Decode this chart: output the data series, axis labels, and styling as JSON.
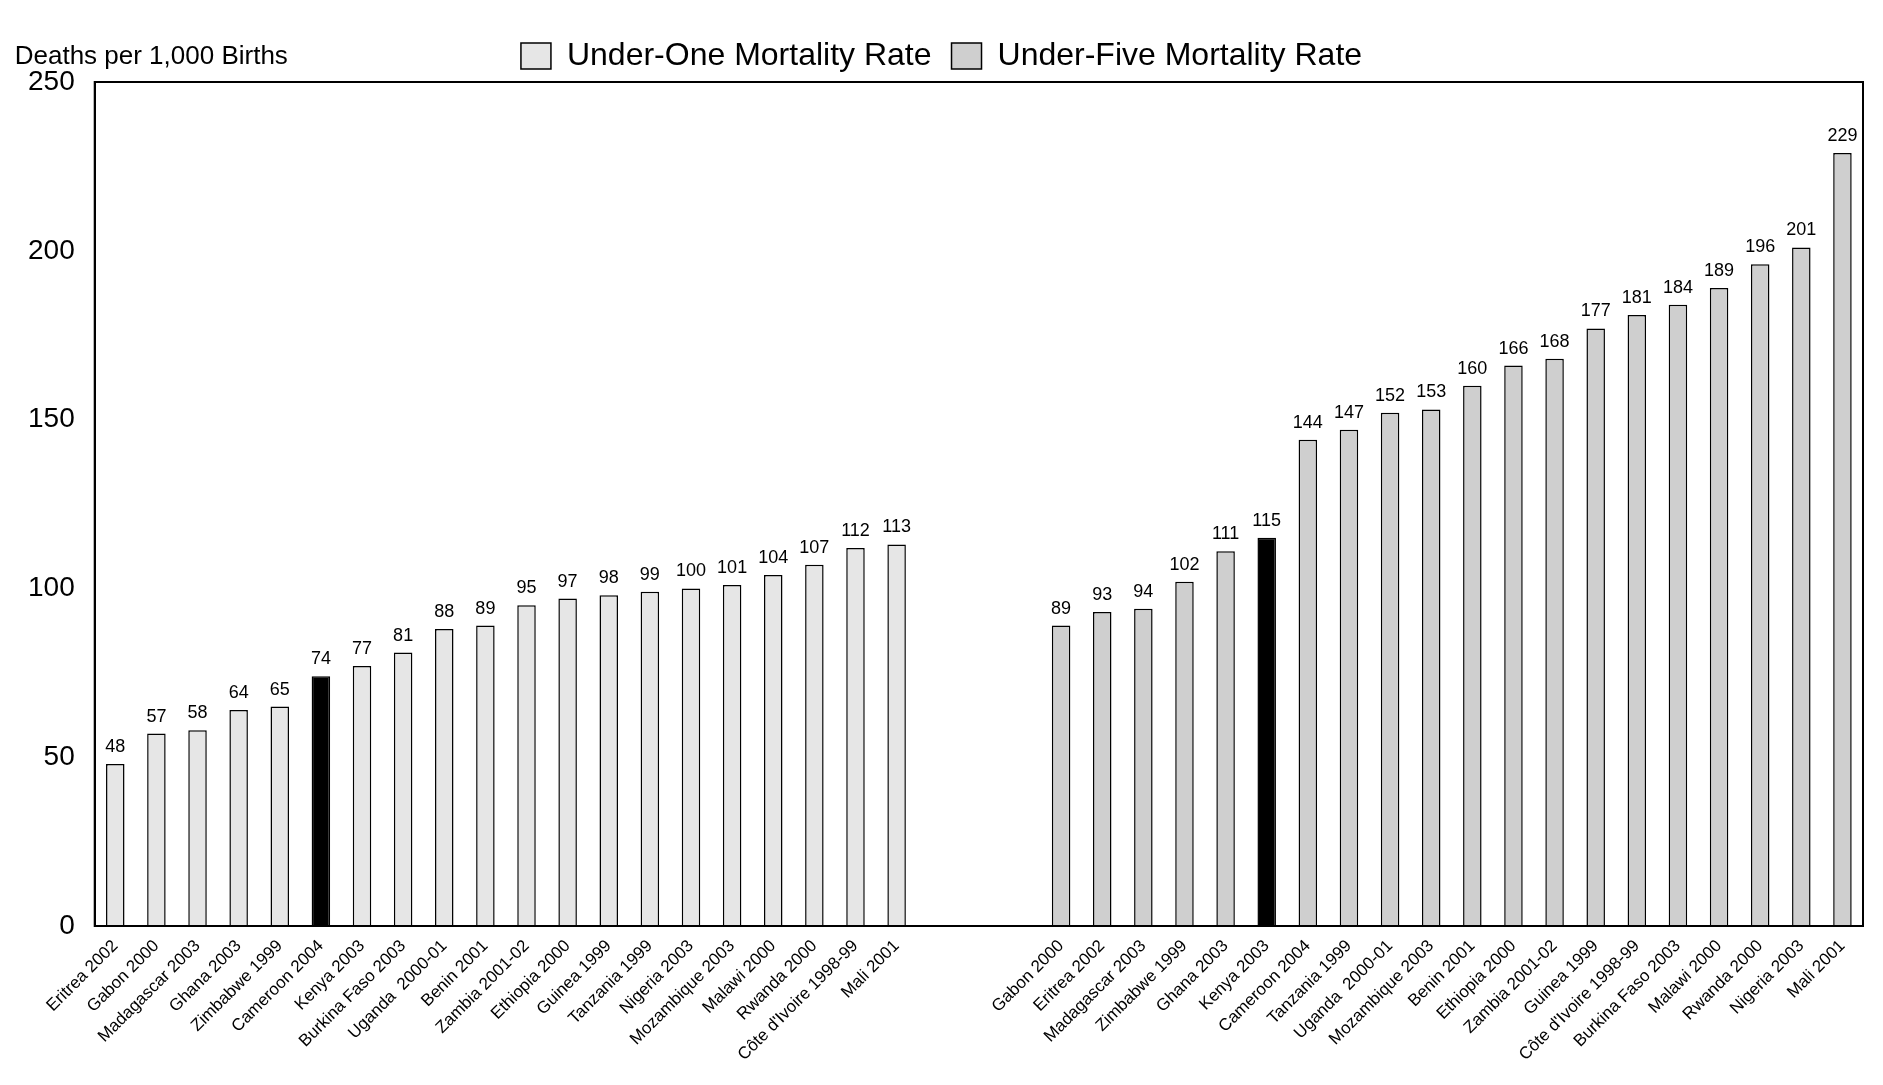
{
  "chart_data": {
    "type": "bar",
    "ylabel": "Deaths per 1,000 Births",
    "categories": [
      "Eritrea 2002",
      "Gabon 2000",
      "Madagascar 2003",
      "Ghana 2003",
      "Zimbabwe 1999",
      "Cameroon 2004",
      "Kenya 2003",
      "Burkina Faso 2003",
      "Uganda  2000-01",
      "Benin 2001",
      "Zambia 2001-02",
      "Ethiopia 2000",
      "Guinea 1999",
      "Tanzania 1999",
      "Nigeria 2003",
      "Mozambique 2003",
      "Malawi 2000",
      "Rwanda 2000",
      "Côte d'Ivoire 1998-99",
      "Mali 2001",
      null,
      null,
      null,
      "Gabon 2000",
      "Eritrea 2002",
      "Madagascar 2003",
      "Zimbabwe 1999",
      "Ghana 2003",
      "Kenya 2003",
      "Cameroon 2004",
      "Tanzania 1999",
      "Uganda  2000-01",
      "Mozambique 2003",
      "Benin 2001",
      "Ethiopia 2000",
      "Zambia 2001-02",
      "Guinea 1999",
      "Côte d'Ivoire 1998-99",
      "Burkina Faso 2003",
      "Malawi 2000",
      "Rwanda 2000",
      "Nigeria 2003",
      "Mali 2001"
    ],
    "series": [
      {
        "name": "Under-One Mortality Rate",
        "color": "#e6e6e6",
        "colors": [
          "#e6e6e6",
          "#e6e6e6",
          "#e6e6e6",
          "#e6e6e6",
          "#e6e6e6",
          "#000000",
          "#e6e6e6",
          "#e6e6e6",
          "#e6e6e6",
          "#e6e6e6",
          "#e6e6e6",
          "#e6e6e6",
          "#e6e6e6",
          "#e6e6e6",
          "#e6e6e6",
          "#e6e6e6",
          "#e6e6e6",
          "#e6e6e6",
          "#e6e6e6",
          "#e6e6e6",
          null,
          null,
          null,
          null,
          null,
          null,
          null,
          null,
          null,
          null,
          null,
          null,
          null,
          null,
          null,
          null,
          null,
          null,
          null,
          null,
          null,
          null,
          null
        ],
        "values": [
          48,
          57,
          58,
          64,
          65,
          74,
          77,
          81,
          88,
          89,
          95,
          97,
          98,
          99,
          100,
          101,
          104,
          107,
          112,
          113,
          null,
          null,
          null,
          null,
          null,
          null,
          null,
          null,
          null,
          null,
          null,
          null,
          null,
          null,
          null,
          null,
          null,
          null,
          null,
          null,
          null,
          null,
          null
        ]
      },
      {
        "name": "Under-Five Mortality Rate",
        "color": "#cfcfcf",
        "colors": [
          null,
          null,
          null,
          null,
          null,
          null,
          null,
          null,
          null,
          null,
          null,
          null,
          null,
          null,
          null,
          null,
          null,
          null,
          null,
          null,
          null,
          null,
          null,
          "#cfcfcf",
          "#cfcfcf",
          "#cfcfcf",
          "#cfcfcf",
          "#cfcfcf",
          "#000000",
          "#cfcfcf",
          "#cfcfcf",
          "#cfcfcf",
          "#cfcfcf",
          "#cfcfcf",
          "#cfcfcf",
          "#cfcfcf",
          "#cfcfcf",
          "#cfcfcf",
          "#cfcfcf",
          "#cfcfcf",
          "#cfcfcf",
          "#cfcfcf",
          "#cfcfcf"
        ],
        "values": [
          null,
          null,
          null,
          null,
          null,
          null,
          null,
          null,
          null,
          null,
          null,
          null,
          null,
          null,
          null,
          null,
          null,
          null,
          null,
          null,
          null,
          null,
          null,
          89,
          93,
          94,
          102,
          111,
          115,
          144,
          147,
          152,
          153,
          160,
          166,
          168,
          177,
          181,
          184,
          189,
          196,
          201,
          229
        ]
      }
    ],
    "ylim": [
      0,
      250
    ],
    "yticks": [
      0,
      50,
      100,
      150,
      200,
      250
    ],
    "grid": false,
    "legend": "top",
    "data_labels": true
  }
}
